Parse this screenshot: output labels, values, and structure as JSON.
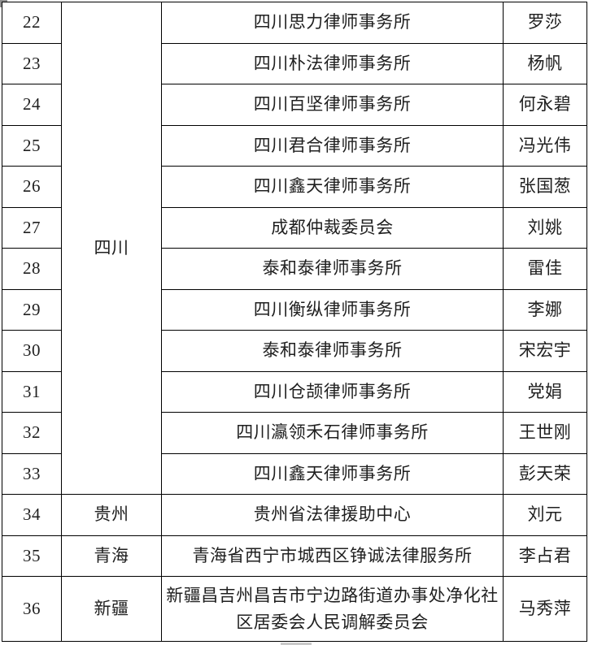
{
  "colors": {
    "border": "#000000",
    "text": "#1f1f1f",
    "background": "#ffffff",
    "artifact_grey": "#c9c9c9"
  },
  "table": {
    "columns": [
      "number",
      "province",
      "organization",
      "name"
    ],
    "rows": [
      {
        "num": "22",
        "province": "四川",
        "span": 12,
        "org": "四川思力律师事务所",
        "name": "罗莎"
      },
      {
        "num": "23",
        "org": "四川朴法律师事务所",
        "name": "杨帆"
      },
      {
        "num": "24",
        "org": "四川百坚律师事务所",
        "name": "何永碧"
      },
      {
        "num": "25",
        "org": "四川君合律师事务所",
        "name": "冯光伟"
      },
      {
        "num": "26",
        "org": "四川鑫天律师事务所",
        "name": "张国葱"
      },
      {
        "num": "27",
        "org": "成都仲裁委员会",
        "name": "刘姚"
      },
      {
        "num": "28",
        "org": "泰和泰律师事务所",
        "name": "雷佳"
      },
      {
        "num": "29",
        "org": "四川衡纵律师事务所",
        "name": "李娜"
      },
      {
        "num": "30",
        "org": "泰和泰律师事务所",
        "name": "宋宏宇"
      },
      {
        "num": "31",
        "org": "四川仓颉律师事务所",
        "name": "党娟"
      },
      {
        "num": "32",
        "org": "四川瀛领禾石律师事务所",
        "name": "王世刚"
      },
      {
        "num": "33",
        "org": "四川鑫天律师事务所",
        "name": "彭天荣"
      },
      {
        "num": "34",
        "province": "贵州",
        "span": 1,
        "org": "贵州省法律援助中心",
        "name": "刘元"
      },
      {
        "num": "35",
        "province": "青海",
        "span": 1,
        "org": "青海省西宁市城西区铮诚法律服务所",
        "name": "李占君"
      },
      {
        "num": "36",
        "province": "新疆",
        "span": 1,
        "org": "新疆昌吉州昌吉市宁边路街道办事处净化社区居委会人民调解委员会",
        "name": "马秀萍"
      }
    ]
  }
}
